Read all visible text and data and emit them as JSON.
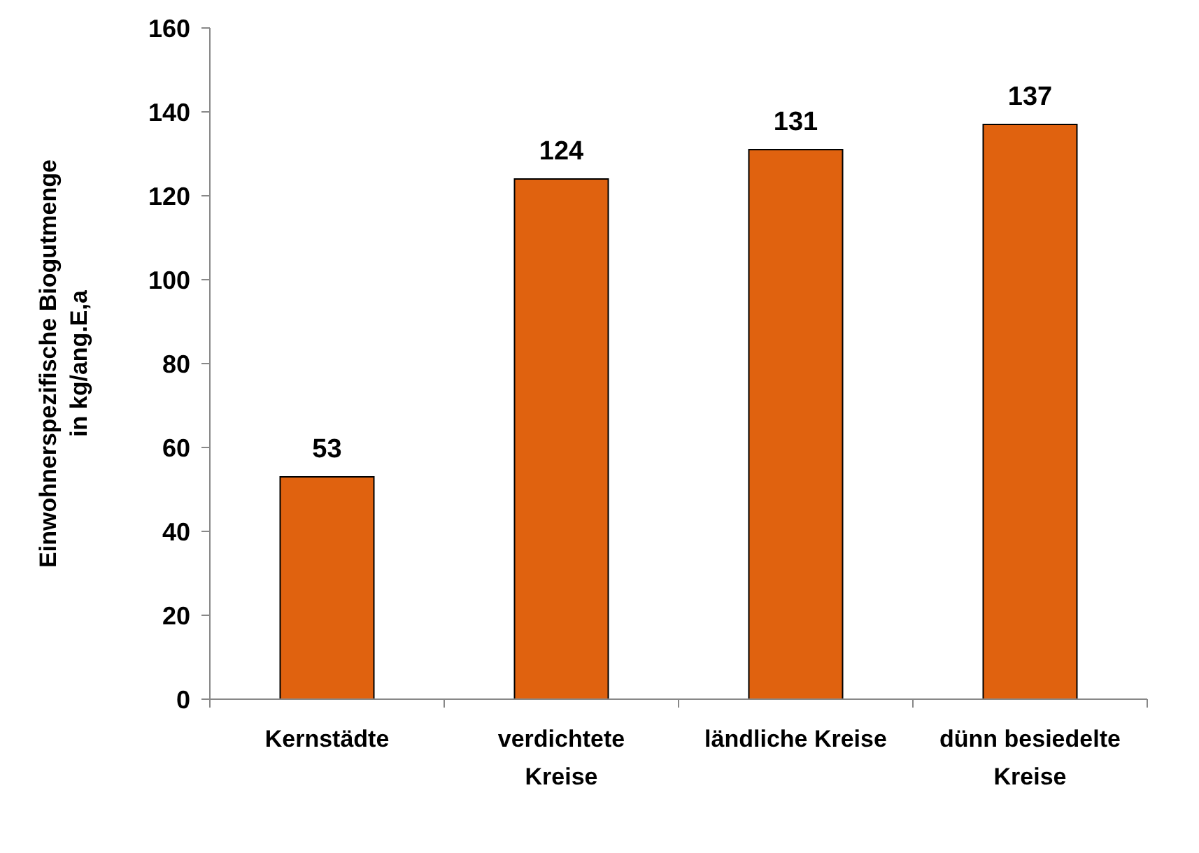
{
  "chart_data": {
    "type": "bar",
    "ylabel": "Einwohnerspezifische Biogutmenge\nin kg/ang.E,a",
    "categories": [
      "Kernstädte",
      "verdichtete Kreise",
      "ländliche Kreise",
      "dünn besiedelte Kreise"
    ],
    "values": [
      53,
      124,
      131,
      137
    ],
    "color": "#e0620f",
    "data_labels": true,
    "ylim": [
      0,
      160
    ],
    "yticks": [
      0,
      20,
      40,
      60,
      80,
      100,
      120,
      140,
      160
    ],
    "grid": false
  }
}
